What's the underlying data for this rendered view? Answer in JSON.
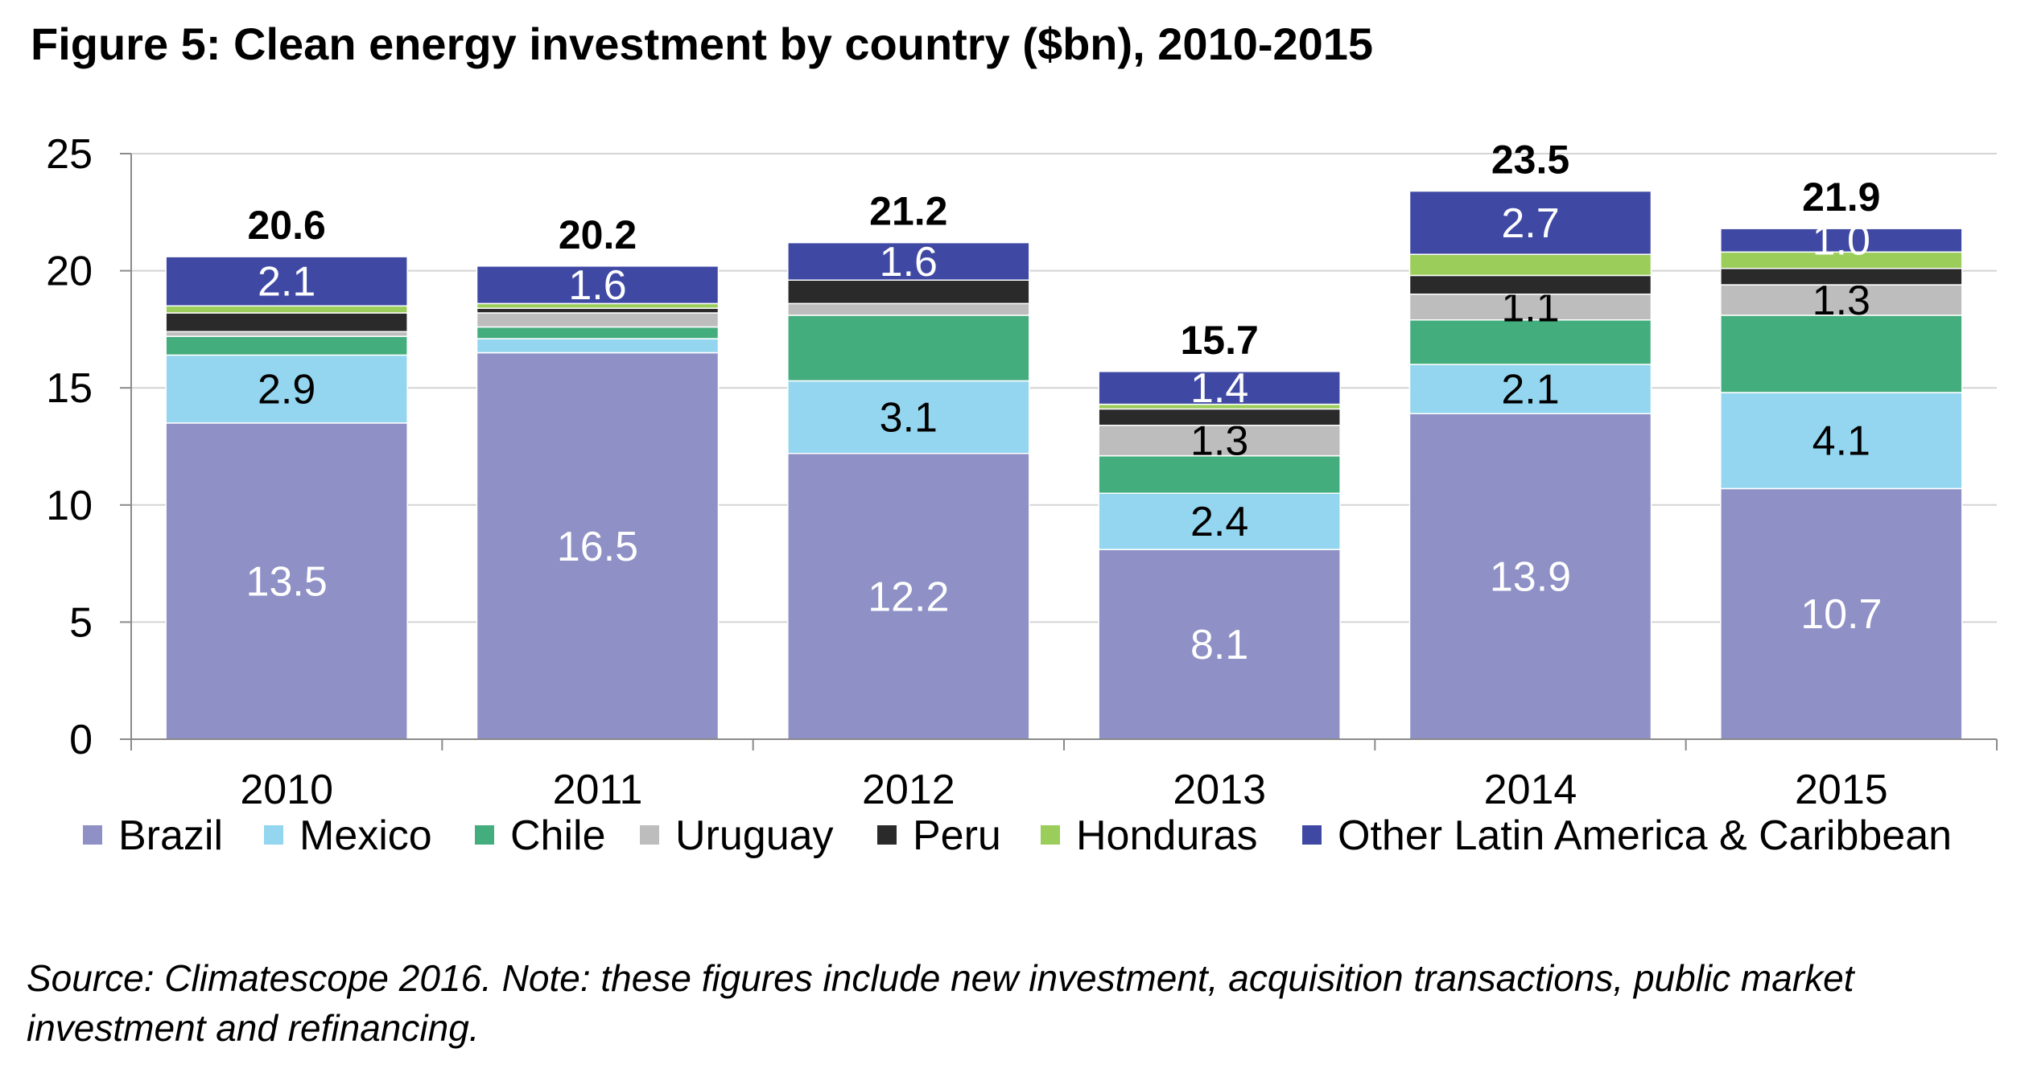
{
  "title": "Figure 5: Clean energy investment by country ($bn), 2010-2015",
  "source": "Source: Climatescope 2016. Note: these figures include new investment, acquisition transactions, public market investment and refinancing.",
  "chart_data": {
    "type": "bar",
    "stacked": true,
    "categories": [
      "2010",
      "2011",
      "2012",
      "2013",
      "2014",
      "2015"
    ],
    "ylim": [
      0,
      25
    ],
    "yticks": [
      "0",
      "5",
      "10",
      "15",
      "20",
      "25"
    ],
    "grid": true,
    "legend_position": "bottom",
    "series": [
      {
        "name": "Brazil",
        "color": "#8e90c6",
        "label_color": "#ffffff",
        "values": [
          13.5,
          16.5,
          12.2,
          8.1,
          13.9,
          10.7
        ],
        "labels": [
          "13.5",
          "16.5",
          "12.2",
          "8.1",
          "13.9",
          "10.7"
        ]
      },
      {
        "name": "Mexico",
        "color": "#94d6ef",
        "label_color": "#000000",
        "values": [
          2.9,
          0.6,
          3.1,
          2.4,
          2.1,
          4.1
        ],
        "labels": [
          "2.9",
          "",
          "3.1",
          "2.4",
          "2.1",
          "4.1"
        ]
      },
      {
        "name": "Chile",
        "color": "#44ad7e",
        "label_color": "#000000",
        "values": [
          0.8,
          0.5,
          2.8,
          1.6,
          1.9,
          3.3
        ],
        "labels": [
          "",
          "",
          "",
          "",
          "",
          ""
        ]
      },
      {
        "name": "Uruguay",
        "color": "#bdbdbd",
        "label_color": "#000000",
        "values": [
          0.2,
          0.6,
          0.5,
          1.3,
          1.1,
          1.3
        ],
        "labels": [
          "",
          "",
          "",
          "1.3",
          "1.1",
          "1.3"
        ]
      },
      {
        "name": "Peru",
        "color": "#2a2a2a",
        "label_color": "#ffffff",
        "values": [
          0.8,
          0.2,
          1.0,
          0.7,
          0.8,
          0.7
        ],
        "labels": [
          "",
          "",
          "",
          "",
          "",
          ""
        ]
      },
      {
        "name": "Honduras",
        "color": "#9acd5a",
        "label_color": "#000000",
        "values": [
          0.3,
          0.2,
          0.0,
          0.2,
          0.9,
          0.7
        ],
        "labels": [
          "",
          "",
          "",
          "",
          "",
          ""
        ]
      },
      {
        "name": "Other Latin America & Caribbean",
        "color": "#3f49a4",
        "label_color": "#ffffff",
        "values": [
          2.1,
          1.6,
          1.6,
          1.4,
          2.7,
          1.0
        ],
        "labels": [
          "2.1",
          "1.6",
          "1.6",
          "1.4",
          "2.7",
          "1.0"
        ]
      }
    ],
    "totals": [
      "20.6",
      "20.2",
      "21.2",
      "15.7",
      "23.5",
      "21.9"
    ]
  }
}
